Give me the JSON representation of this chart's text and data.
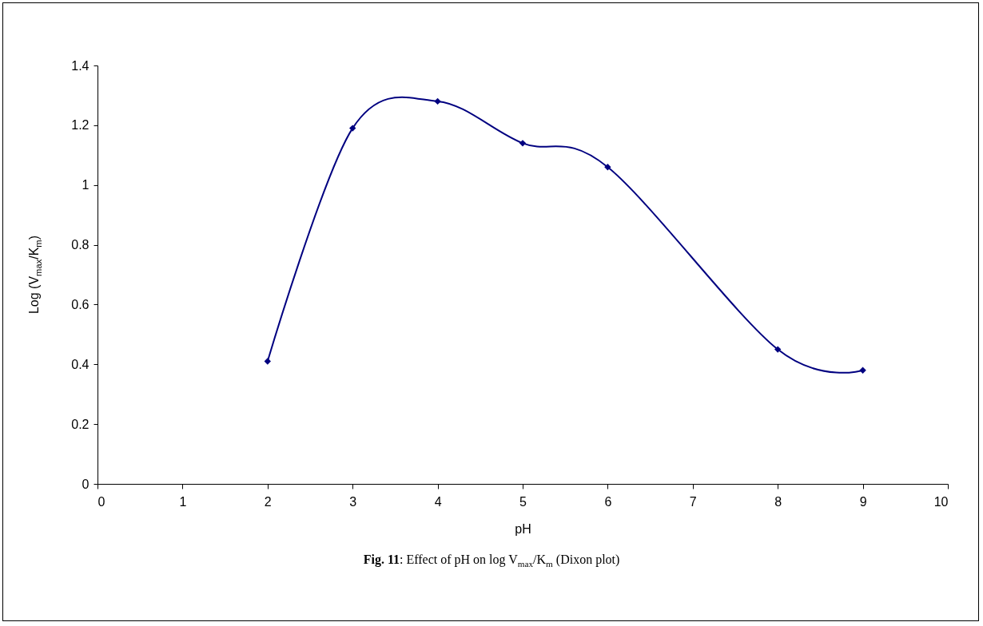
{
  "chart_data": {
    "type": "line",
    "xlabel": "pH",
    "ylabel": "Log (V$_{max}$/K$_{m}$)",
    "annotations": [
      "Fig. 11: Effect of pH on log V$_{max}$/K$_{m}$ (Dixon plot)"
    ],
    "x": [
      2,
      3,
      4,
      5,
      6,
      8,
      9
    ],
    "series": [
      {
        "color": "#000080",
        "values": [
          0.41,
          1.19,
          1.28,
          1.14,
          1.06,
          0.45,
          0.38
        ]
      }
    ],
    "xlim": [
      0,
      10
    ],
    "xticks": [
      0,
      1,
      2,
      3,
      4,
      5,
      6,
      7,
      8,
      9,
      10
    ],
    "ylim": [
      0,
      1.4
    ],
    "yticks": [
      0,
      0.2,
      0.4,
      0.6,
      0.8,
      1,
      1.2,
      1.4
    ],
    "grid": false,
    "legend": false,
    "marker": "diamond",
    "line_style": "solid"
  }
}
